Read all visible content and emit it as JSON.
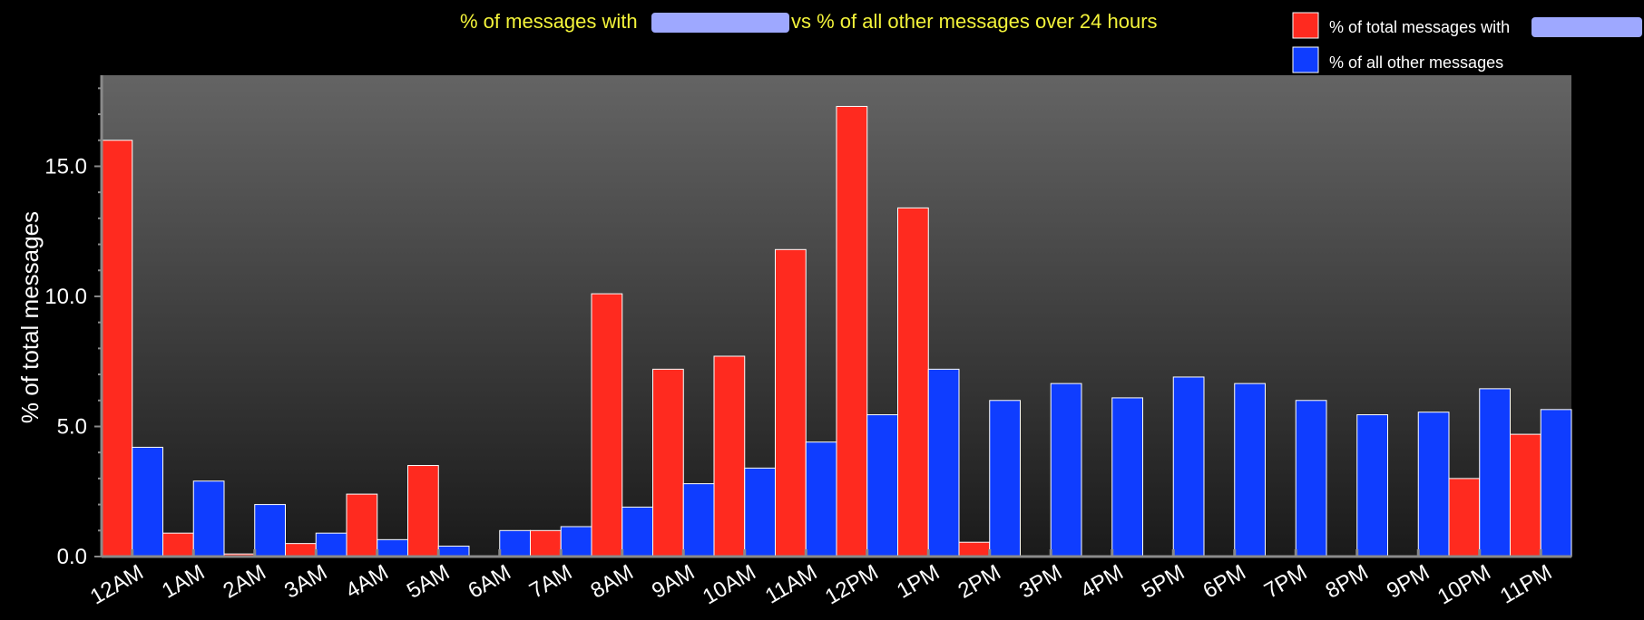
{
  "chart_data": {
    "type": "bar",
    "title_prefix": "% of messages with",
    "title_suffix": "vs % of all other messages over 24 hours",
    "xlabel": "",
    "ylabel": "% of total messages",
    "ylim": [
      0,
      18.5
    ],
    "yticks": [
      {
        "value": 0,
        "label": "0.0"
      },
      {
        "value": 5,
        "label": "5.0"
      },
      {
        "value": 10,
        "label": "10.0"
      },
      {
        "value": 15,
        "label": "15.0"
      }
    ],
    "categories": [
      "12AM",
      "1AM",
      "2AM",
      "3AM",
      "4AM",
      "5AM",
      "6AM",
      "7AM",
      "8AM",
      "9AM",
      "10AM",
      "11AM",
      "12PM",
      "1PM",
      "2PM",
      "3PM",
      "4PM",
      "5PM",
      "6PM",
      "7PM",
      "8PM",
      "9PM",
      "10PM",
      "11PM"
    ],
    "legend_position": "top-right",
    "series": [
      {
        "name": "% of total messages with",
        "color": "#ff2a1f",
        "values": [
          16.0,
          0.9,
          0.1,
          0.5,
          2.4,
          3.5,
          0,
          1.0,
          10.1,
          7.2,
          7.7,
          11.8,
          17.3,
          13.4,
          0.55,
          0,
          0,
          0,
          0,
          0,
          0,
          0,
          3.0,
          4.7
        ]
      },
      {
        "name": "% of all other messages",
        "color": "#0f3dff",
        "values": [
          4.2,
          2.9,
          2.0,
          0.9,
          0.65,
          0.4,
          1.0,
          1.15,
          1.9,
          2.8,
          3.4,
          4.4,
          5.45,
          7.2,
          6.0,
          6.65,
          6.1,
          6.9,
          6.65,
          6.0,
          5.45,
          5.55,
          6.45,
          5.65
        ]
      }
    ],
    "redaction_color": "#9ea8ff"
  }
}
